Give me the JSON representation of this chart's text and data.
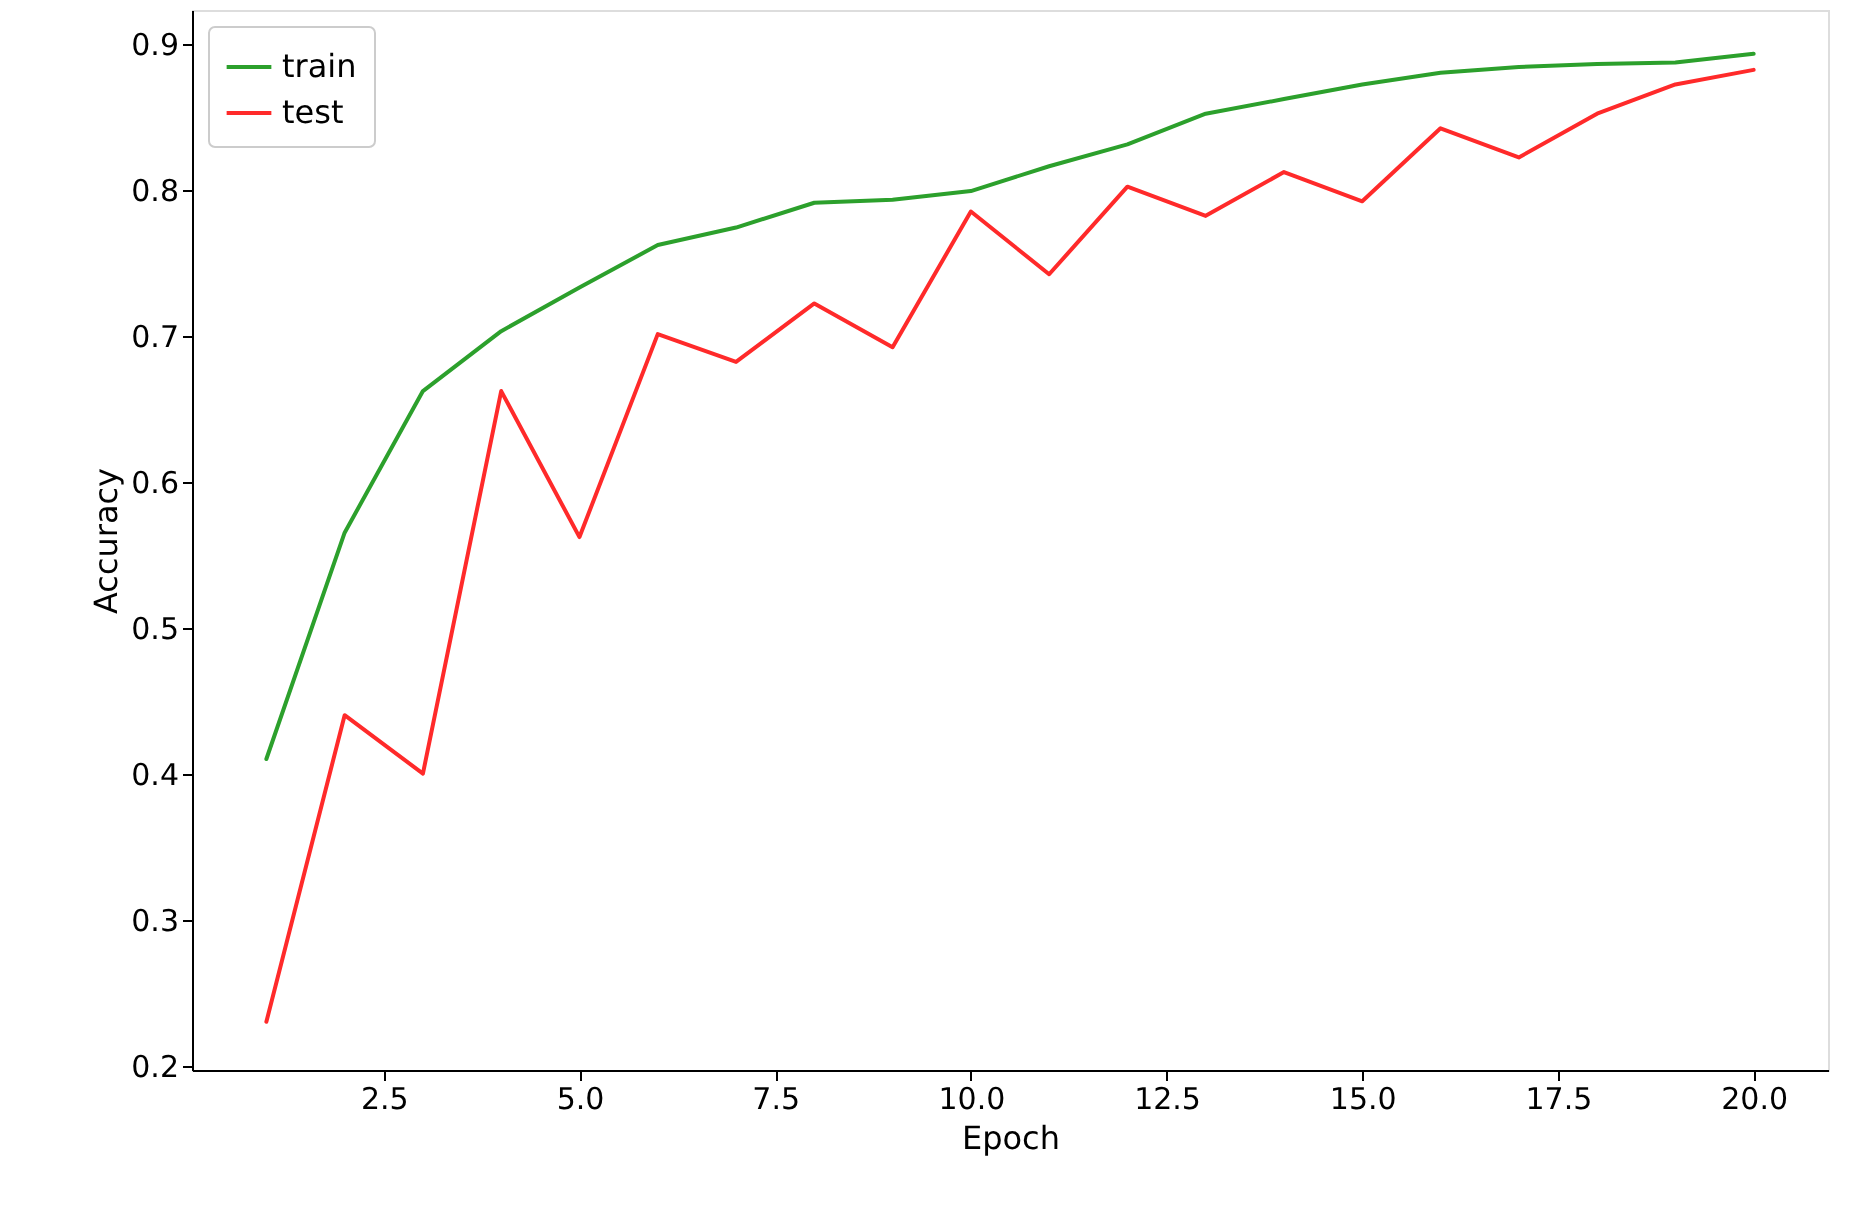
{
  "chart_data": {
    "type": "line",
    "xlabel": "Epoch",
    "ylabel": "Accuracy",
    "x": [
      1,
      2,
      3,
      4,
      5,
      6,
      7,
      8,
      9,
      10,
      11,
      12,
      13,
      14,
      15,
      16,
      17,
      18,
      19,
      20
    ],
    "series": [
      {
        "name": "train",
        "color": "#2ca02c",
        "values": [
          0.41,
          0.565,
          0.662,
          0.703,
          0.733,
          0.762,
          0.774,
          0.791,
          0.793,
          0.799,
          0.816,
          0.831,
          0.852,
          0.862,
          0.872,
          0.88,
          0.884,
          0.886,
          0.887,
          0.893
        ]
      },
      {
        "name": "test",
        "color": "#ff2a2a",
        "values": [
          0.23,
          0.44,
          0.4,
          0.662,
          0.562,
          0.701,
          0.682,
          0.722,
          0.692,
          0.785,
          0.742,
          0.802,
          0.782,
          0.812,
          0.792,
          0.842,
          0.822,
          0.852,
          0.872,
          0.882
        ]
      }
    ],
    "xlim": [
      0.05,
      20.95
    ],
    "ylim": [
      0.197,
      0.923
    ],
    "xticks": [
      {
        "value": 2.5,
        "label": "2.5"
      },
      {
        "value": 5,
        "label": "5.0"
      },
      {
        "value": 7.5,
        "label": "7.5"
      },
      {
        "value": 10,
        "label": "10.0"
      },
      {
        "value": 12.5,
        "label": "12.5"
      },
      {
        "value": 15,
        "label": "15.0"
      },
      {
        "value": 17.5,
        "label": "17.5"
      },
      {
        "value": 20,
        "label": "20.0"
      }
    ],
    "yticks": [
      0.2,
      0.3,
      0.4,
      0.5,
      0.6,
      0.7,
      0.8,
      0.9
    ],
    "legend": "top left",
    "grid": false,
    "marker": "none",
    "line_style": "solid"
  }
}
